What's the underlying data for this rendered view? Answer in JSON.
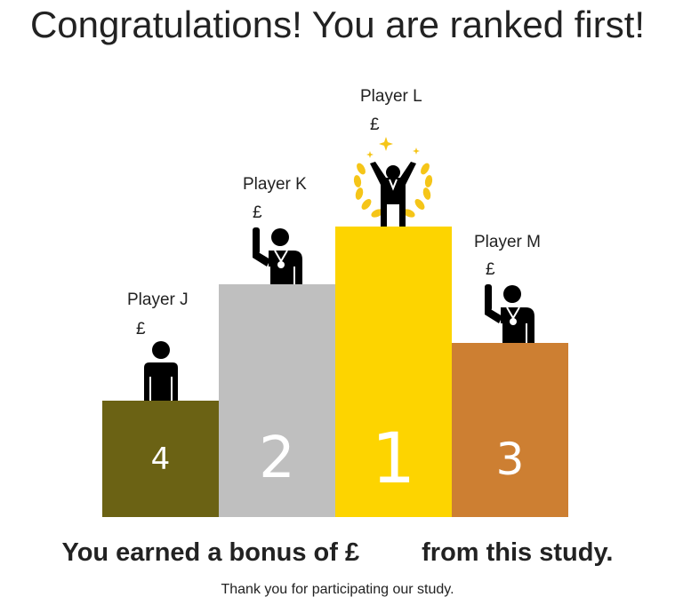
{
  "title": "Congratulations! You are ranked first!",
  "podium": [
    {
      "rank": "4",
      "player": "Player J",
      "currency": "£",
      "color": "#6b6214",
      "figure": "standing-person-icon"
    },
    {
      "rank": "2",
      "player": "Player K",
      "currency": "£",
      "color": "#bfbfbf",
      "figure": "medalist-waving-icon"
    },
    {
      "rank": "1",
      "player": "Player L",
      "currency": "£",
      "color": "#fdd400",
      "figure": "champion-laurel-icon"
    },
    {
      "rank": "3",
      "player": "Player M",
      "currency": "£",
      "color": "#cd7f32",
      "figure": "medalist-waving-icon"
    }
  ],
  "bonus": {
    "prefix": "You earned a bonus of £",
    "amount": "",
    "suffix": "from this study."
  },
  "thanks": "Thank you for participating our study.",
  "colors": {
    "gold_accent": "#f5c518",
    "figure": "#000000"
  }
}
